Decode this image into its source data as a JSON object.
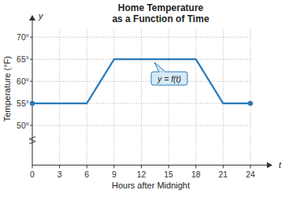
{
  "chart_data": {
    "type": "line",
    "title": "Home Temperature\nas a Function of Time",
    "x_label": "Hours after Midnight",
    "y_label": "Temperature (°F)",
    "x_symbol": "t",
    "y_symbol": "y",
    "x": [
      0,
      6,
      9,
      18,
      21,
      24
    ],
    "series": [
      {
        "name": "y = f(t)",
        "color": "#2a7ab8",
        "values": [
          55,
          55,
          65,
          65,
          55,
          55
        ],
        "marker": "endpoints",
        "line_style": "solid"
      }
    ],
    "xlim": [
      0,
      24
    ],
    "xticks": [
      0,
      3,
      6,
      9,
      12,
      15,
      18,
      21,
      24
    ],
    "ylim": [
      41,
      72
    ],
    "yticks": [
      {
        "value": 50,
        "label": "50°"
      },
      {
        "value": 55,
        "label": "55°"
      },
      {
        "value": 60,
        "label": "60°"
      },
      {
        "value": 65,
        "label": "65°"
      },
      {
        "value": 70,
        "label": "70°"
      }
    ],
    "grid": true
  }
}
